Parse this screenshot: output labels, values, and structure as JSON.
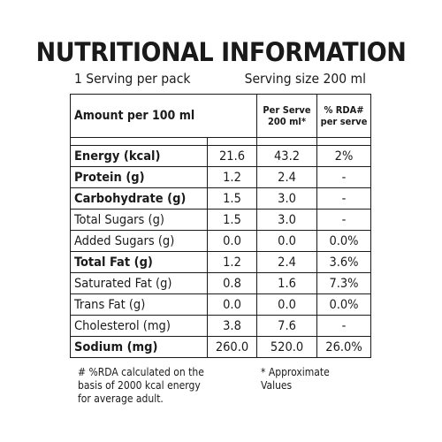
{
  "title": "NUTRITIONAL INFORMATION",
  "servings_per_pack": "1 Serving  per pack",
  "serving_size": "Serving size 200 ml",
  "header": {
    "label": "Amount per 100 ml",
    "col_per_serve_line1": "Per Serve",
    "col_per_serve_line2": "200 ml*",
    "col_rda_line1": "% RDA#",
    "col_rda_line2": "per serve"
  },
  "rows": [
    {
      "label": "Energy (kcal)",
      "per100": "21.6",
      "perServe": "43.2",
      "rda": "2%",
      "bold": true
    },
    {
      "label": "Protein (g)",
      "per100": "1.2",
      "perServe": "2.4",
      "rda": "-",
      "bold": true
    },
    {
      "label": "Carbohydrate (g)",
      "per100": "1.5",
      "perServe": "3.0",
      "rda": "-",
      "bold": true
    },
    {
      "label": "Total Sugars (g)",
      "per100": "1.5",
      "perServe": "3.0",
      "rda": "-",
      "bold": false
    },
    {
      "label": "Added Sugars (g)",
      "per100": "0.0",
      "perServe": "0.0",
      "rda": "0.0%",
      "bold": false
    },
    {
      "label": "Total Fat (g)",
      "per100": "1.2",
      "perServe": "2.4",
      "rda": "3.6%",
      "bold": true
    },
    {
      "label": "Saturated Fat (g)",
      "per100": "0.8",
      "perServe": "1.6",
      "rda": "7.3%",
      "bold": false
    },
    {
      "label": "Trans Fat (g)",
      "per100": "0.0",
      "perServe": "0.0",
      "rda": "0.0%",
      "bold": false
    },
    {
      "label": "Cholesterol (mg)",
      "per100": "3.8",
      "perServe": "7.6",
      "rda": "-",
      "bold": false
    },
    {
      "label": "Sodium (mg)",
      "per100": "260.0",
      "perServe": "520.0",
      "rda": "26.0%",
      "bold": true
    }
  ],
  "footnotes": {
    "rda_line1": "# %RDA calculated on the",
    "rda_line2": "basis of 2000 kcal energy",
    "rda_line3": "for average adult.",
    "approx_line1": "* Approximate",
    "approx_line2": "Values"
  }
}
